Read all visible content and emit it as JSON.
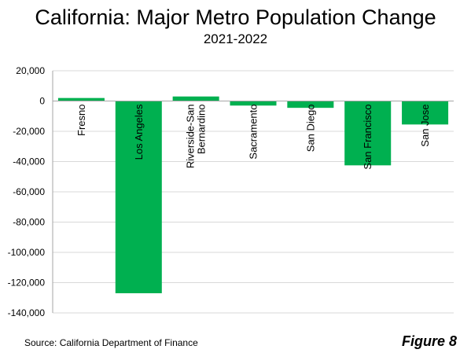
{
  "chart_data": {
    "type": "bar",
    "title": "California: Major Metro Population Change",
    "subtitle": "2021-2022",
    "categories": [
      {
        "lines": [
          "Fresno"
        ]
      },
      {
        "lines": [
          "Los Angeles"
        ]
      },
      {
        "lines": [
          "Riverside-San",
          "Bernardino"
        ]
      },
      {
        "lines": [
          "Sacramento"
        ]
      },
      {
        "lines": [
          "San Diego"
        ]
      },
      {
        "lines": [
          "San Francisco"
        ]
      },
      {
        "lines": [
          "San Jose"
        ]
      }
    ],
    "values": [
      2000,
      -127000,
      3000,
      -3000,
      -4500,
      -42500,
      -15500
    ],
    "ylim": [
      -140000,
      20000
    ],
    "yticks": [
      20000,
      0,
      -20000,
      -40000,
      -60000,
      -80000,
      -100000,
      -120000,
      -140000
    ],
    "ytick_labels": [
      "20,000",
      "0",
      "-20,000",
      "-40,000",
      "-60,000",
      "-80,000",
      "-100,000",
      "-120,000",
      "-140,000"
    ],
    "grid": true,
    "bar_color": "#00b050",
    "grid_color": "#d9d9d9"
  },
  "footer": {
    "source": "Source: California Department of Finance",
    "figure_label": "Figure 8"
  }
}
